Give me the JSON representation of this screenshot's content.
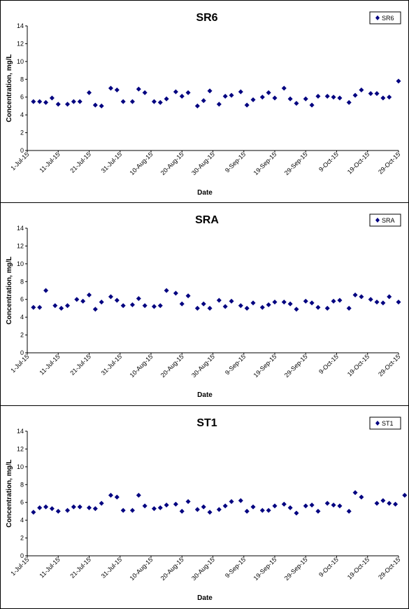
{
  "chart_data": [
    {
      "type": "scatter",
      "title": "SR6",
      "xlabel": "Date",
      "ylabel": "Concentration, mg/L",
      "ylim": [
        0,
        14
      ],
      "yticks": [
        "0",
        "2",
        "4",
        "6",
        "8",
        "10",
        "12",
        "14"
      ],
      "xlim": [
        "2015-07-01",
        "2015-10-29"
      ],
      "xticks": [
        "1-Jul-15",
        "11-Jul-15",
        "21-Jul-15",
        "31-Jul-15",
        "10-Aug-15",
        "20-Aug-15",
        "30-Aug-15",
        "9-Sep-15",
        "19-Sep-15",
        "29-Sep-15",
        "9-Oct-15",
        "19-Oct-15",
        "29-Oct-15"
      ],
      "legend_position": "top-right",
      "marker_color": "#000080",
      "series": [
        {
          "name": "SR6",
          "x": [
            "2015-07-03",
            "2015-07-05",
            "2015-07-07",
            "2015-07-09",
            "2015-07-11",
            "2015-07-14",
            "2015-07-16",
            "2015-07-18",
            "2015-07-21",
            "2015-07-23",
            "2015-07-25",
            "2015-07-28",
            "2015-07-30",
            "2015-08-01",
            "2015-08-04",
            "2015-08-06",
            "2015-08-08",
            "2015-08-11",
            "2015-08-13",
            "2015-08-15",
            "2015-08-18",
            "2015-08-20",
            "2015-08-22",
            "2015-08-25",
            "2015-08-27",
            "2015-08-29",
            "2015-09-01",
            "2015-09-03",
            "2015-09-05",
            "2015-09-08",
            "2015-09-10",
            "2015-09-12",
            "2015-09-15",
            "2015-09-17",
            "2015-09-19",
            "2015-09-22",
            "2015-09-24",
            "2015-09-26",
            "2015-09-29",
            "2015-10-01",
            "2015-10-03",
            "2015-10-06",
            "2015-10-08",
            "2015-10-10",
            "2015-10-13",
            "2015-10-15",
            "2015-10-17",
            "2015-10-20",
            "2015-10-22",
            "2015-10-24",
            "2015-10-26",
            "2015-10-29"
          ],
          "y": [
            5.5,
            5.5,
            5.4,
            5.9,
            5.2,
            5.2,
            5.5,
            5.5,
            6.5,
            5.1,
            5.0,
            7.0,
            6.8,
            5.5,
            5.5,
            6.9,
            6.5,
            5.5,
            5.4,
            5.8,
            6.6,
            6.1,
            6.5,
            5.0,
            5.6,
            6.7,
            5.2,
            6.1,
            6.2,
            6.6,
            5.1,
            5.7,
            6.0,
            6.5,
            5.9,
            7.0,
            5.8,
            5.3,
            5.8,
            5.1,
            6.1,
            6.1,
            6.0,
            5.9,
            5.4,
            6.2,
            6.8,
            6.4,
            6.4,
            5.9,
            6.0,
            7.8
          ]
        }
      ]
    },
    {
      "type": "scatter",
      "title": "SRA",
      "xlabel": "Date",
      "ylabel": "Concentration, mg/L",
      "ylim": [
        0,
        14
      ],
      "yticks": [
        "0",
        "2",
        "4",
        "6",
        "8",
        "10",
        "12",
        "14"
      ],
      "xlim": [
        "2015-07-01",
        "2015-10-29"
      ],
      "xticks": [
        "1-Jul-15",
        "11-Jul-15",
        "21-Jul-15",
        "31-Jul-15",
        "10-Aug-15",
        "20-Aug-15",
        "30-Aug-15",
        "9-Sep-15",
        "19-Sep-15",
        "29-Sep-15",
        "9-Oct-15",
        "19-Oct-15",
        "29-Oct-15"
      ],
      "legend_position": "top-right",
      "marker_color": "#000080",
      "series": [
        {
          "name": "SRA",
          "x": [
            "2015-07-03",
            "2015-07-05",
            "2015-07-07",
            "2015-07-10",
            "2015-07-12",
            "2015-07-14",
            "2015-07-17",
            "2015-07-19",
            "2015-07-21",
            "2015-07-23",
            "2015-07-25",
            "2015-07-28",
            "2015-07-30",
            "2015-08-01",
            "2015-08-04",
            "2015-08-06",
            "2015-08-08",
            "2015-08-11",
            "2015-08-13",
            "2015-08-15",
            "2015-08-18",
            "2015-08-20",
            "2015-08-22",
            "2015-08-25",
            "2015-08-27",
            "2015-08-29",
            "2015-09-01",
            "2015-09-03",
            "2015-09-05",
            "2015-09-08",
            "2015-09-10",
            "2015-09-12",
            "2015-09-15",
            "2015-09-17",
            "2015-09-19",
            "2015-09-22",
            "2015-09-24",
            "2015-09-26",
            "2015-09-29",
            "2015-10-01",
            "2015-10-03",
            "2015-10-06",
            "2015-10-08",
            "2015-10-10",
            "2015-10-13",
            "2015-10-15",
            "2015-10-17",
            "2015-10-20",
            "2015-10-22",
            "2015-10-24",
            "2015-10-26",
            "2015-10-29"
          ],
          "y": [
            5.1,
            5.1,
            7.0,
            5.3,
            5.0,
            5.3,
            6.0,
            5.8,
            6.5,
            4.9,
            5.7,
            6.3,
            5.9,
            5.3,
            5.4,
            6.1,
            5.3,
            5.2,
            5.3,
            7.0,
            6.7,
            5.5,
            6.4,
            5.0,
            5.5,
            5.0,
            5.9,
            5.2,
            5.8,
            5.3,
            5.0,
            5.6,
            5.1,
            5.4,
            5.7,
            5.7,
            5.5,
            4.9,
            5.8,
            5.6,
            5.1,
            5.0,
            5.8,
            5.9,
            5.0,
            6.5,
            6.3,
            6.0,
            5.7,
            5.6,
            6.3,
            5.7
          ]
        }
      ]
    },
    {
      "type": "scatter",
      "title": "ST1",
      "xlabel": "Date",
      "ylabel": "Concentration, mg/L",
      "ylim": [
        0,
        14
      ],
      "yticks": [
        "0",
        "2",
        "4",
        "6",
        "8",
        "10",
        "12",
        "14"
      ],
      "xlim": [
        "2015-07-01",
        "2015-10-29"
      ],
      "xticks": [
        "1-Jul-15",
        "11-Jul-15",
        "21-Jul-15",
        "31-Jul-15",
        "10-Aug-15",
        "20-Aug-15",
        "30-Aug-15",
        "9-Sep-15",
        "19-Sep-15",
        "29-Sep-15",
        "9-Oct-15",
        "19-Oct-15",
        "29-Oct-15"
      ],
      "legend_position": "top-right",
      "marker_color": "#000080",
      "series": [
        {
          "name": "ST1",
          "x": [
            "2015-07-03",
            "2015-07-05",
            "2015-07-07",
            "2015-07-09",
            "2015-07-11",
            "2015-07-14",
            "2015-07-16",
            "2015-07-18",
            "2015-07-21",
            "2015-07-23",
            "2015-07-25",
            "2015-07-28",
            "2015-07-30",
            "2015-08-01",
            "2015-08-04",
            "2015-08-06",
            "2015-08-08",
            "2015-08-11",
            "2015-08-13",
            "2015-08-15",
            "2015-08-18",
            "2015-08-20",
            "2015-08-22",
            "2015-08-25",
            "2015-08-27",
            "2015-08-29",
            "2015-09-01",
            "2015-09-03",
            "2015-09-05",
            "2015-09-08",
            "2015-09-10",
            "2015-09-12",
            "2015-09-15",
            "2015-09-17",
            "2015-09-19",
            "2015-09-22",
            "2015-09-24",
            "2015-09-26",
            "2015-09-29",
            "2015-10-01",
            "2015-10-03",
            "2015-10-06",
            "2015-10-08",
            "2015-10-10",
            "2015-10-13",
            "2015-10-15",
            "2015-10-17",
            "2015-10-22",
            "2015-10-24",
            "2015-10-26",
            "2015-10-28",
            "2015-10-31"
          ],
          "y": [
            4.9,
            5.4,
            5.5,
            5.3,
            5.0,
            5.1,
            5.5,
            5.5,
            5.4,
            5.3,
            5.9,
            6.8,
            6.6,
            5.1,
            5.1,
            6.8,
            5.6,
            5.3,
            5.4,
            5.7,
            5.8,
            5.0,
            6.1,
            5.2,
            5.5,
            4.9,
            5.2,
            5.6,
            6.1,
            6.2,
            5.0,
            5.5,
            5.1,
            5.1,
            5.6,
            5.8,
            5.4,
            4.8,
            5.6,
            5.7,
            5.0,
            5.9,
            5.7,
            5.6,
            5.0,
            7.1,
            6.6,
            5.9,
            6.2,
            5.9,
            5.8,
            6.8
          ]
        }
      ]
    }
  ]
}
